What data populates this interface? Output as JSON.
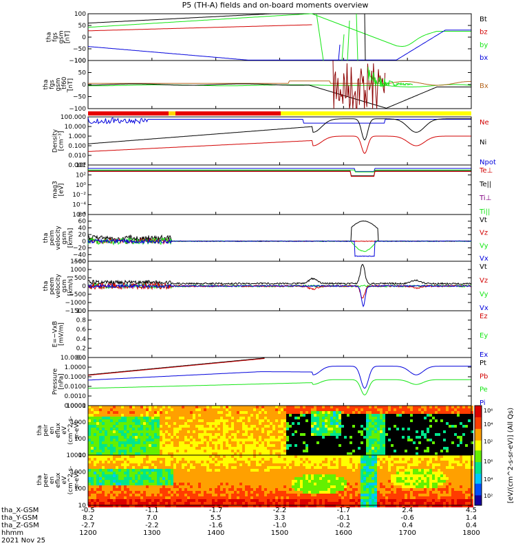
{
  "title": "P5 (TH-A) fields and on-board moments overview",
  "chart_data": {
    "type": "line",
    "x_hours": [
      12,
      13,
      14,
      15,
      16,
      17,
      18
    ],
    "footer": {
      "rows": [
        "tha_X-GSM",
        "tha_Y-GSM",
        "tha_Z-GSM",
        "hhmm",
        "2021 Nov 25"
      ],
      "x_gsm": [
        "-0.5",
        "-1.1",
        "-1.7",
        "-2.2",
        "-1.7",
        "2.4",
        "4.5"
      ],
      "y_gsm": [
        "8.2",
        "7.0",
        "5.5",
        "3.3",
        "-0.1",
        "-0.6",
        "1.4"
      ],
      "z_gsm": [
        "-2.7",
        "-2.2",
        "-1.6",
        "-1.0",
        "-0.2",
        "0.4",
        "0.4"
      ],
      "hhmm": [
        "1200",
        "1300",
        "1400",
        "1500",
        "1600",
        "1700",
        "1800"
      ]
    },
    "colorbar_label": "[eV/(cm^2-s-sr-eV)] (All Qs)",
    "colorbar_ticks": [
      "10²",
      "10⁴",
      "10⁶"
    ],
    "colors": {
      "black": "#000000",
      "red": "#d20000",
      "green": "#14e614",
      "blue": "#0000dc"
    },
    "panels": [
      {
        "ylabel": [
          "tha",
          "fgs",
          "gsm",
          "[nT]"
        ],
        "yticks": [
          "100",
          "50",
          "0",
          "−50",
          "−100"
        ],
        "ylim": [
          -100,
          100
        ],
        "legend": [
          {
            "label": "Bt",
            "color": "#000000"
          },
          {
            "label": "bz",
            "color": "#d20000"
          },
          {
            "label": "by",
            "color": "#14e614"
          },
          {
            "label": "bx",
            "color": "#0000dc"
          }
        ]
      },
      {
        "ylabel": [
          "tha",
          "fgs",
          "gsm",
          "_tf60",
          "[nT]"
        ],
        "yticks": [
          "100",
          "50",
          "0",
          "−50",
          "−100"
        ],
        "ylim": [
          -100,
          100
        ],
        "legend": [
          {
            "label": "Bx",
            "color": "#b5651d"
          }
        ]
      },
      {
        "ylabel": [
          "Density",
          "[cm⁻³]"
        ],
        "yticks": [
          "100.000",
          "10.000",
          "1.000",
          "0.100",
          "0.010",
          "0.001"
        ],
        "scale": "log",
        "legend": [
          {
            "label": "Ne",
            "color": "#d20000"
          },
          {
            "label": "Ni",
            "color": "#000000"
          },
          {
            "label": "Npot",
            "color": "#0000dc"
          }
        ]
      },
      {
        "ylabel": [
          "mag3",
          "[eV]"
        ],
        "yticks": [
          "10⁴",
          "10²",
          "10⁰",
          "10⁻²",
          "10⁻⁴",
          "10⁻⁶"
        ],
        "scale": "log",
        "legend": [
          {
            "label": "Te⊥",
            "color": "#d20000"
          },
          {
            "label": "Te||",
            "color": "#000000"
          },
          {
            "label": "Ti⊥",
            "color": "#800080"
          },
          {
            "label": "Ti||",
            "color": "#14e614"
          }
        ]
      },
      {
        "ylabel": [
          "tha",
          "peim",
          "velocity",
          "gsm",
          "[km/s]"
        ],
        "yticks": [
          "80",
          "60",
          "40",
          "20",
          "0",
          "−20",
          "−40",
          "−60"
        ],
        "ylim": [
          -60,
          80
        ],
        "legend": [
          {
            "label": "Vt",
            "color": "#000000"
          },
          {
            "label": "Vz",
            "color": "#d20000"
          },
          {
            "label": "Vy",
            "color": "#14e614"
          },
          {
            "label": "Vx",
            "color": "#0000dc"
          }
        ]
      },
      {
        "ylabel": [
          "tha",
          "peem",
          "velocity",
          "gsm",
          "[km/s]"
        ],
        "yticks": [
          "1500",
          "1000",
          "500",
          "0",
          "−500",
          "−1000",
          "−1500"
        ],
        "ylim": [
          -1500,
          1500
        ],
        "legend": [
          {
            "label": "Vt",
            "color": "#000000"
          },
          {
            "label": "Vz",
            "color": "#d20000"
          },
          {
            "label": "Vy",
            "color": "#14e614"
          },
          {
            "label": "Vx",
            "color": "#0000dc"
          }
        ]
      },
      {
        "ylabel": [
          "E=−VxB",
          "[mV/m]"
        ],
        "yticks": [
          "1.0",
          "0.8",
          "0.6",
          "0.4",
          "0.2",
          "0.0"
        ],
        "ylim": [
          0,
          1
        ],
        "legend": [
          {
            "label": "Ez",
            "color": "#d20000"
          },
          {
            "label": "Ey",
            "color": "#14e614"
          },
          {
            "label": "Ex",
            "color": "#0000dc"
          }
        ]
      },
      {
        "ylabel": [
          "Pressure",
          "[nPa]"
        ],
        "yticks": [
          "10.0000",
          "1.0000",
          "0.1000",
          "0.0100",
          "0.0010",
          "0.0001"
        ],
        "scale": "log",
        "legend": [
          {
            "label": "Pt",
            "color": "#000000"
          },
          {
            "label": "Pb",
            "color": "#d20000"
          },
          {
            "label": "Pe",
            "color": "#14e614"
          },
          {
            "label": "Pi",
            "color": "#0000dc"
          }
        ]
      },
      {
        "ylabel": [
          "tha",
          "peir",
          "en",
          "eflux",
          "eV",
          "(cm^2-s-",
          "sr-eV)"
        ],
        "yticks": [
          "10000",
          "1000",
          "100",
          "10"
        ],
        "scale": "log"
      },
      {
        "ylabel": [
          "tha",
          "peer",
          "en",
          "eflux",
          "eV",
          "(cm^2-s-",
          "sr-eV)"
        ],
        "yticks": [
          "10000",
          "1000",
          "100",
          "10"
        ],
        "scale": "log"
      }
    ]
  }
}
